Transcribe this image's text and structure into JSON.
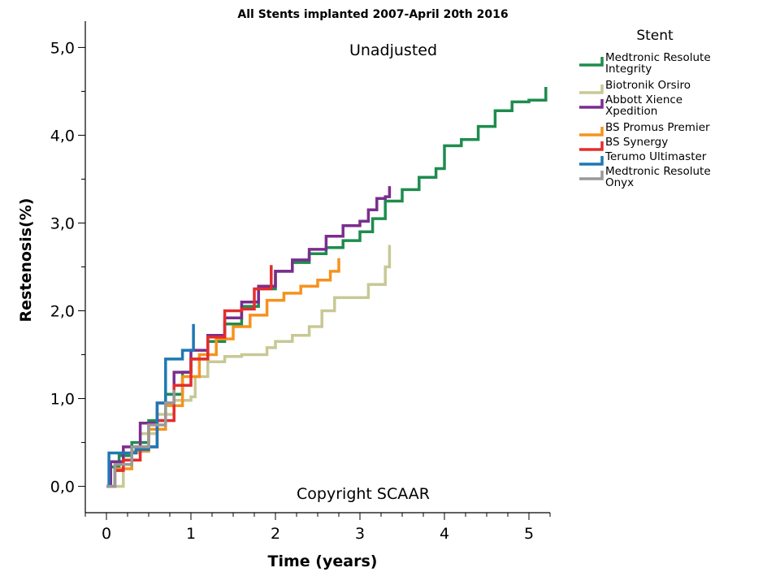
{
  "chart_data": {
    "type": "line",
    "title": "All Stents implanted 2007-April 20th 2016",
    "annotations": {
      "top": "Unadjusted",
      "bottom": "Copyright SCAAR"
    },
    "xlabel": "Time (years)",
    "ylabel": "Restenosis(%)",
    "xlim": [
      -0.25,
      5.25
    ],
    "ylim": [
      -0.3,
      5.3
    ],
    "x_ticks": [
      0,
      1,
      2,
      3,
      4,
      5
    ],
    "x_tick_labels": [
      "0",
      "1",
      "2",
      "3",
      "4",
      "5"
    ],
    "y_ticks": [
      0,
      1,
      2,
      3,
      4,
      5
    ],
    "y_tick_labels": [
      "0,0",
      "1,0",
      "2,0",
      "3,0",
      "4,0",
      "5,0"
    ],
    "grid": false,
    "legend": {
      "title": "Stent",
      "placement": "right"
    },
    "series": [
      {
        "name": "Medtronic Resolute Integrity",
        "legend_lines": [
          "Medtronic Resolute",
          "Integrity"
        ],
        "color": "#1e8c4e",
        "points": [
          [
            0,
            0
          ],
          [
            0.05,
            0.22
          ],
          [
            0.15,
            0.35
          ],
          [
            0.3,
            0.5
          ],
          [
            0.5,
            0.75
          ],
          [
            0.7,
            1.05
          ],
          [
            0.9,
            1.3
          ],
          [
            1.0,
            1.45
          ],
          [
            1.2,
            1.65
          ],
          [
            1.4,
            1.85
          ],
          [
            1.6,
            2.05
          ],
          [
            1.8,
            2.25
          ],
          [
            2.0,
            2.45
          ],
          [
            2.2,
            2.55
          ],
          [
            2.4,
            2.65
          ],
          [
            2.6,
            2.72
          ],
          [
            2.8,
            2.8
          ],
          [
            3.0,
            2.9
          ],
          [
            3.15,
            3.05
          ],
          [
            3.3,
            3.25
          ],
          [
            3.5,
            3.38
          ],
          [
            3.7,
            3.52
          ],
          [
            3.9,
            3.62
          ],
          [
            4.0,
            3.88
          ],
          [
            4.2,
            3.95
          ],
          [
            4.4,
            4.1
          ],
          [
            4.6,
            4.28
          ],
          [
            4.8,
            4.38
          ],
          [
            5.0,
            4.4
          ],
          [
            5.2,
            4.4
          ],
          [
            5.2,
            4.55
          ]
        ]
      },
      {
        "name": "Biotronik Orsiro",
        "legend_lines": [
          "Biotronik Orsiro"
        ],
        "color": "#c8c896",
        "points": [
          [
            0,
            0
          ],
          [
            0.2,
            0.38
          ],
          [
            0.4,
            0.6
          ],
          [
            0.6,
            0.82
          ],
          [
            0.8,
            0.98
          ],
          [
            1.0,
            1.02
          ],
          [
            1.05,
            1.25
          ],
          [
            1.2,
            1.42
          ],
          [
            1.4,
            1.48
          ],
          [
            1.6,
            1.5
          ],
          [
            1.8,
            1.5
          ],
          [
            1.9,
            1.58
          ],
          [
            2.0,
            1.65
          ],
          [
            2.2,
            1.72
          ],
          [
            2.4,
            1.82
          ],
          [
            2.55,
            2.0
          ],
          [
            2.7,
            2.15
          ],
          [
            3.0,
            2.15
          ],
          [
            3.1,
            2.3
          ],
          [
            3.3,
            2.5
          ],
          [
            3.35,
            2.75
          ]
        ]
      },
      {
        "name": "Abbott Xience Xpedition",
        "legend_lines": [
          "Abbott Xience",
          "Xpedition"
        ],
        "color": "#7b2d8e",
        "points": [
          [
            0,
            0
          ],
          [
            0.05,
            0.28
          ],
          [
            0.2,
            0.45
          ],
          [
            0.4,
            0.72
          ],
          [
            0.6,
            0.95
          ],
          [
            0.8,
            1.3
          ],
          [
            1.0,
            1.55
          ],
          [
            1.2,
            1.72
          ],
          [
            1.4,
            1.92
          ],
          [
            1.6,
            2.1
          ],
          [
            1.8,
            2.28
          ],
          [
            2.0,
            2.45
          ],
          [
            2.2,
            2.58
          ],
          [
            2.4,
            2.7
          ],
          [
            2.6,
            2.85
          ],
          [
            2.8,
            2.97
          ],
          [
            3.0,
            3.02
          ],
          [
            3.1,
            3.15
          ],
          [
            3.2,
            3.28
          ],
          [
            3.3,
            3.3
          ],
          [
            3.35,
            3.42
          ]
        ]
      },
      {
        "name": "BS Promus Premier",
        "legend_lines": [
          "BS Promus Premier"
        ],
        "color": "#f5921e",
        "points": [
          [
            0,
            0
          ],
          [
            0.1,
            0.2
          ],
          [
            0.3,
            0.4
          ],
          [
            0.5,
            0.65
          ],
          [
            0.7,
            0.92
          ],
          [
            0.9,
            1.25
          ],
          [
            1.1,
            1.5
          ],
          [
            1.3,
            1.68
          ],
          [
            1.5,
            1.82
          ],
          [
            1.7,
            1.95
          ],
          [
            1.9,
            2.12
          ],
          [
            2.1,
            2.2
          ],
          [
            2.3,
            2.28
          ],
          [
            2.5,
            2.35
          ],
          [
            2.65,
            2.45
          ],
          [
            2.75,
            2.6
          ]
        ]
      },
      {
        "name": "BS Synergy",
        "legend_lines": [
          "BS Synergy"
        ],
        "color": "#e32d2d",
        "points": [
          [
            0,
            0
          ],
          [
            0.1,
            0.18
          ],
          [
            0.2,
            0.3
          ],
          [
            0.4,
            0.45
          ],
          [
            0.6,
            0.75
          ],
          [
            0.8,
            1.15
          ],
          [
            1.0,
            1.45
          ],
          [
            1.2,
            1.7
          ],
          [
            1.4,
            2.0
          ],
          [
            1.6,
            2.02
          ],
          [
            1.75,
            2.25
          ],
          [
            1.95,
            2.25
          ],
          [
            1.95,
            2.52
          ]
        ]
      },
      {
        "name": "Terumo Ultimaster",
        "legend_lines": [
          "Terumo Ultimaster"
        ],
        "color": "#1e78b4",
        "points": [
          [
            0,
            0
          ],
          [
            0.03,
            0.38
          ],
          [
            0.2,
            0.38
          ],
          [
            0.35,
            0.42
          ],
          [
            0.5,
            0.45
          ],
          [
            0.6,
            0.95
          ],
          [
            0.7,
            1.45
          ],
          [
            0.9,
            1.55
          ],
          [
            1.03,
            1.55
          ],
          [
            1.03,
            1.85
          ]
        ]
      },
      {
        "name": "Medtronic Resolute Onyx",
        "legend_lines": [
          "Medtronic Resolute",
          "Onyx"
        ],
        "color": "#999999",
        "points": [
          [
            0,
            0
          ],
          [
            0.1,
            0.25
          ],
          [
            0.3,
            0.45
          ],
          [
            0.5,
            0.7
          ],
          [
            0.7,
            0.95
          ],
          [
            0.8,
            1.1
          ]
        ]
      }
    ]
  }
}
